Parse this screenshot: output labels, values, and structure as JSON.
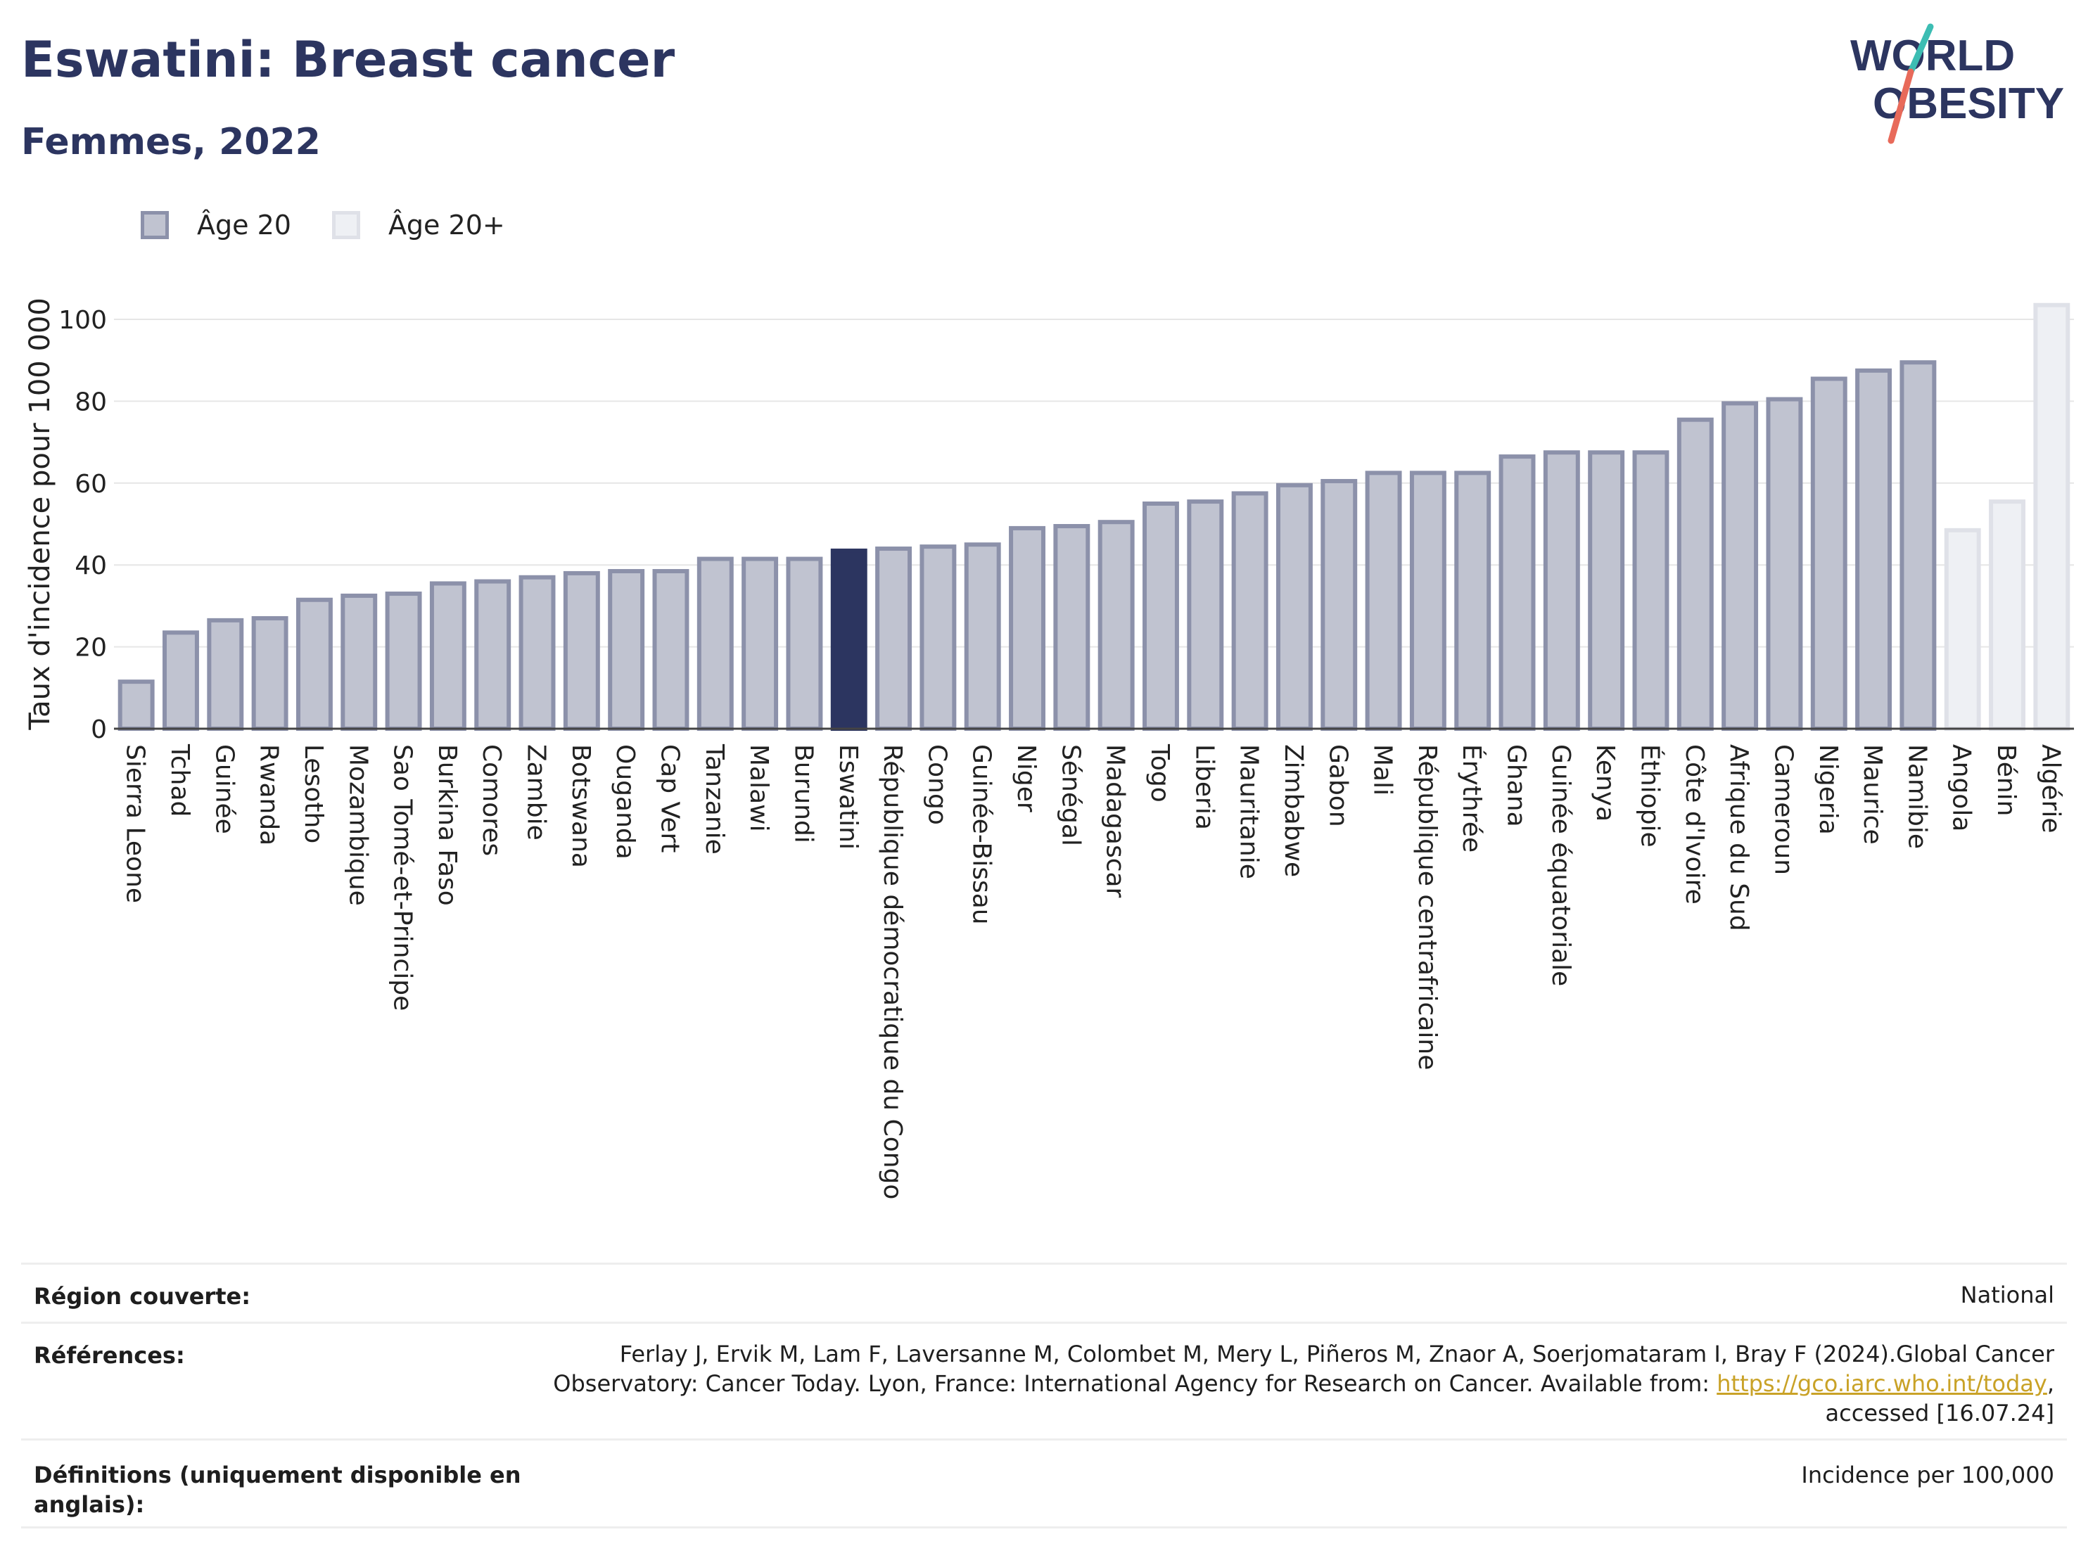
{
  "title": "Eswatini: Breast cancer",
  "subtitle": "Femmes, 2022",
  "logo": {
    "line1": "WORLD",
    "line2": "OBESITY"
  },
  "legend": {
    "item1": "Âge 20",
    "item2": "Âge 20+"
  },
  "colors": {
    "highlight": "#2c3560",
    "age20_fill": "#c0c3d0",
    "age20_stroke": "#8c91aa",
    "age20plus_fill": "#eef0f4",
    "age20plus_stroke": "#dfe1e8",
    "logo_teal": "#3cbdb3",
    "logo_coral": "#e86a5a"
  },
  "chart_data": {
    "type": "bar",
    "title": "Eswatini: Breast cancer",
    "subtitle": "Femmes, 2022",
    "ylabel": "Taux d'incidence pour 100 000",
    "ylim": [
      0,
      105
    ],
    "yticks": [
      0,
      20,
      40,
      60,
      80,
      100
    ],
    "grid": true,
    "legend_position": "top-left",
    "highlight": "Eswatini",
    "categories": [
      "Sierra Leone",
      "Tchad",
      "Guinée",
      "Rwanda",
      "Lesotho",
      "Mozambique",
      "Sao Tomé-et-Principe",
      "Burkina Faso",
      "Comores",
      "Zambie",
      "Botswana",
      "Ouganda",
      "Cap Vert",
      "Tanzanie",
      "Malawi",
      "Burundi",
      "Eswatini",
      "République démocratique du Congo",
      "Congo",
      "Guinée-Bissau",
      "Niger",
      "Sénégal",
      "Madagascar",
      "Togo",
      "Liberia",
      "Mauritanie",
      "Zimbabwe",
      "Gabon",
      "Mali",
      "République centrafricaine",
      "Érythrée",
      "Ghana",
      "Guinée équatoriale",
      "Kenya",
      "Éthiopie",
      "Côte d'Ivoire",
      "Afrique du Sud",
      "Cameroun",
      "Nigeria",
      "Maurice",
      "Namibie",
      "Angola",
      "Bénin",
      "Algérie"
    ],
    "values": [
      12,
      24,
      27,
      27.5,
      32,
      33,
      33.5,
      36,
      36.5,
      37.5,
      38.5,
      39,
      39,
      42,
      42,
      42,
      44,
      44.5,
      45,
      45.5,
      49.5,
      50,
      51,
      55.5,
      56,
      58,
      60,
      61,
      63,
      63,
      63,
      67,
      68,
      68,
      68,
      76,
      80,
      81,
      86,
      88,
      90,
      49,
      56,
      104
    ],
    "series_group": [
      "Âge 20",
      "Âge 20",
      "Âge 20",
      "Âge 20",
      "Âge 20",
      "Âge 20",
      "Âge 20",
      "Âge 20",
      "Âge 20",
      "Âge 20",
      "Âge 20",
      "Âge 20",
      "Âge 20",
      "Âge 20",
      "Âge 20",
      "Âge 20",
      "Âge 20",
      "Âge 20",
      "Âge 20",
      "Âge 20",
      "Âge 20",
      "Âge 20",
      "Âge 20",
      "Âge 20",
      "Âge 20",
      "Âge 20",
      "Âge 20",
      "Âge 20",
      "Âge 20",
      "Âge 20",
      "Âge 20",
      "Âge 20",
      "Âge 20",
      "Âge 20",
      "Âge 20",
      "Âge 20",
      "Âge 20",
      "Âge 20",
      "Âge 20",
      "Âge 20",
      "Âge 20",
      "Âge 20+",
      "Âge 20+",
      "Âge 20+"
    ]
  },
  "meta": {
    "region_label": "Région couverte:",
    "region_value": "National",
    "refs_label": "Références:",
    "refs_line1": "Ferlay J, Ervik M, Lam F, Laversanne M, Colombet M, Mery L, Piñeros M, Znaor A, Soerjomataram I, Bray F (2024).Global Cancer",
    "refs_line2": "Observatory: Cancer Today. Lyon, France: International Agency for Research on Cancer. Available from: ",
    "refs_link": "https://gco.iarc.who.int/today",
    "refs_line2_end": ",",
    "refs_line3": "accessed [16.07.24]",
    "defs_label_line1": "Définitions (uniquement disponible en",
    "defs_label_line2": "anglais):",
    "defs_value": "Incidence per 100,000"
  }
}
